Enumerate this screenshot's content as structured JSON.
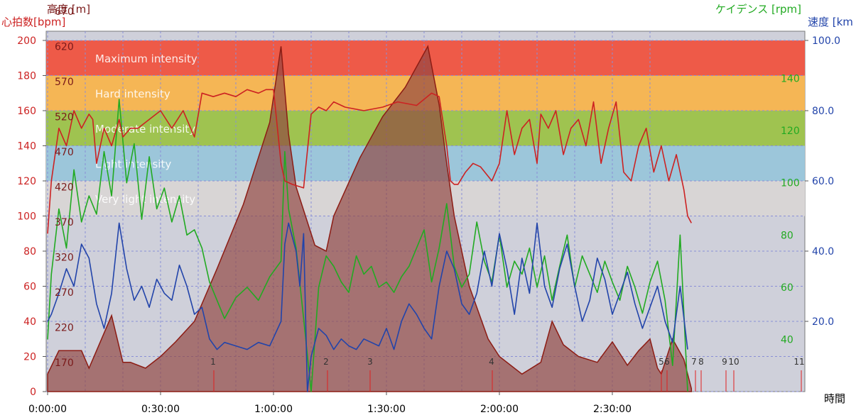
{
  "chart_data": {
    "type": "line",
    "title": "",
    "axes": {
      "heart_rate": {
        "label": "心拍数[bpm]",
        "color": "#cc2222",
        "range": [
          0,
          200
        ],
        "ticks": [
          "0",
          "20",
          "40",
          "60",
          "80",
          "100",
          "120",
          "140",
          "160",
          "180",
          "200"
        ]
      },
      "altitude": {
        "label": "高度 [m]",
        "color": "#7a1a1a",
        "range": [
          120,
          720
        ],
        "ticks": [
          "170",
          "220",
          "270",
          "320",
          "370",
          "420",
          "470",
          "520",
          "570",
          "620",
          "670"
        ]
      },
      "cadence": {
        "label": "ケイデンス [rpm]",
        "color": "#22aa22",
        "ticks": [
          "40",
          "60",
          "80",
          "100",
          "120",
          "140"
        ]
      },
      "speed": {
        "label": "速度 [km",
        "color": "#2244aa",
        "range": [
          0,
          100
        ],
        "ticks": [
          "20.0",
          "40.0",
          "60.0",
          "80.0",
          "100.0"
        ]
      },
      "time": {
        "label": "時間",
        "ticks": [
          "0:00:00",
          "0:30:00",
          "1:00:00",
          "1:30:00",
          "2:00:00",
          "2:30:00"
        ]
      }
    },
    "zones": [
      {
        "name": "Maximum intensity",
        "from": 180,
        "to": 200,
        "color": "#ee5a48"
      },
      {
        "name": "Hard intensity",
        "from": 160,
        "to": 180,
        "color": "#f5b655"
      },
      {
        "name": "Moderate intensity",
        "from": 140,
        "to": 160,
        "color": "#9fc350"
      },
      {
        "name": "Light intensity",
        "from": 120,
        "to": 140,
        "color": "#9cc6da"
      },
      {
        "name": "Very light intensity",
        "from": 100,
        "to": 120,
        "color": "#d8d5d5"
      }
    ],
    "laps": [
      "1",
      "2",
      "3",
      "4",
      "5",
      "6",
      "7",
      "8",
      "9",
      "10",
      "11"
    ],
    "series": [
      {
        "name": "高度",
        "x_minutes": [
          0,
          3,
          9,
          11,
          17,
          20,
          22,
          26,
          30,
          34,
          39,
          45,
          52,
          59,
          62,
          64,
          66,
          71,
          74,
          76,
          83,
          89,
          95,
          101,
          104,
          106,
          108,
          112,
          117,
          120,
          126,
          131,
          134,
          137,
          141,
          146,
          150,
          154,
          157,
          160,
          162,
          163,
          164,
          166,
          169,
          171
        ],
        "values": [
          150,
          190,
          190,
          160,
          250,
          170,
          170,
          160,
          180,
          205,
          240,
          330,
          440,
          580,
          710,
          560,
          470,
          370,
          360,
          420,
          520,
          590,
          640,
          710,
          610,
          510,
          420,
          300,
          210,
          180,
          150,
          170,
          240,
          200,
          180,
          170,
          205,
          165,
          190,
          210,
          160,
          150,
          170,
          210,
          175,
          125
        ]
      },
      {
        "name": "心拍数",
        "x_minutes": [
          0,
          1,
          3,
          5,
          7,
          9,
          11,
          12,
          13,
          15,
          17,
          19,
          20,
          22,
          24,
          27,
          30,
          33,
          36,
          38,
          39,
          41,
          44,
          47,
          50,
          53,
          56,
          58,
          60,
          62,
          63,
          65,
          68,
          70,
          72,
          74,
          76,
          79,
          84,
          89,
          93,
          98,
          102,
          104,
          106,
          107,
          108,
          109,
          111,
          113,
          115,
          118,
          120,
          122,
          124,
          126,
          128,
          130,
          131,
          133,
          135,
          137,
          139,
          141,
          143,
          145,
          147,
          149,
          151,
          153,
          155,
          157,
          159,
          161,
          163,
          165,
          167,
          169,
          170,
          171
        ],
        "values": [
          90,
          120,
          150,
          140,
          160,
          150,
          158,
          155,
          130,
          150,
          140,
          155,
          145,
          150,
          150,
          155,
          160,
          150,
          160,
          150,
          145,
          170,
          168,
          170,
          168,
          172,
          170,
          172,
          172,
          130,
          120,
          118,
          116,
          158,
          162,
          160,
          165,
          162,
          160,
          162,
          165,
          163,
          170,
          168,
          140,
          120,
          118,
          118,
          125,
          130,
          128,
          120,
          130,
          160,
          135,
          150,
          155,
          130,
          158,
          150,
          160,
          135,
          150,
          155,
          140,
          165,
          130,
          150,
          165,
          125,
          120,
          140,
          150,
          125,
          140,
          120,
          135,
          115,
          100,
          96
        ]
      },
      {
        "name": "ケイデンス",
        "x_minutes": [
          0,
          1,
          3,
          5,
          7,
          9,
          11,
          13,
          15,
          17,
          19,
          21,
          23,
          25,
          27,
          29,
          31,
          33,
          35,
          37,
          39,
          41,
          43,
          45,
          47,
          50,
          53,
          56,
          59,
          62,
          63,
          64,
          66,
          68,
          70,
          72,
          74,
          76,
          78,
          80,
          82,
          84,
          86,
          88,
          90,
          92,
          94,
          96,
          98,
          100,
          102,
          104,
          106,
          108,
          110,
          112,
          114,
          116,
          118,
          120,
          122,
          124,
          126,
          128,
          130,
          132,
          134,
          136,
          138,
          140,
          142,
          144,
          146,
          148,
          150,
          152,
          154,
          156,
          158,
          160,
          162,
          164,
          166,
          168,
          170
        ],
        "values": [
          40,
          65,
          90,
          75,
          105,
          85,
          95,
          88,
          112,
          95,
          132,
          100,
          115,
          86,
          110,
          90,
          98,
          85,
          95,
          80,
          82,
          75,
          62,
          55,
          48,
          56,
          60,
          55,
          64,
          70,
          112,
          90,
          75,
          48,
          20,
          60,
          72,
          68,
          62,
          58,
          72,
          65,
          68,
          60,
          62,
          58,
          64,
          68,
          75,
          82,
          62,
          75,
          92,
          68,
          60,
          65,
          85,
          70,
          62,
          80,
          60,
          70,
          65,
          75,
          60,
          72,
          55,
          68,
          80,
          60,
          72,
          65,
          58,
          70,
          62,
          55,
          68,
          60,
          50,
          62,
          70,
          55,
          30,
          80,
          20
        ]
      },
      {
        "name": "速度",
        "x_minutes": [
          0,
          1,
          3,
          5,
          7,
          9,
          11,
          13,
          15,
          17,
          19,
          21,
          23,
          25,
          27,
          29,
          31,
          33,
          35,
          37,
          39,
          41,
          43,
          45,
          47,
          50,
          53,
          56,
          59,
          62,
          63,
          64,
          66,
          67,
          68,
          69,
          70,
          72,
          74,
          76,
          78,
          80,
          82,
          84,
          86,
          88,
          90,
          92,
          94,
          96,
          98,
          100,
          102,
          104,
          106,
          108,
          110,
          112,
          114,
          116,
          118,
          120,
          122,
          124,
          126,
          128,
          130,
          132,
          134,
          136,
          138,
          140,
          142,
          144,
          146,
          148,
          150,
          152,
          154,
          156,
          158,
          160,
          162,
          164,
          166,
          168,
          170
        ],
        "values": [
          20,
          22,
          28,
          35,
          30,
          42,
          38,
          25,
          18,
          28,
          48,
          35,
          26,
          30,
          24,
          32,
          28,
          26,
          36,
          30,
          22,
          24,
          15,
          12,
          14,
          13,
          12,
          14,
          13,
          20,
          42,
          48,
          40,
          30,
          45,
          0,
          10,
          18,
          16,
          12,
          15,
          13,
          12,
          15,
          14,
          13,
          18,
          12,
          20,
          25,
          22,
          18,
          15,
          30,
          40,
          35,
          25,
          22,
          28,
          40,
          30,
          45,
          35,
          22,
          38,
          28,
          48,
          30,
          24,
          35,
          42,
          30,
          20,
          26,
          38,
          32,
          22,
          28,
          34,
          25,
          18,
          24,
          30,
          20,
          14,
          30,
          12
        ]
      }
    ]
  }
}
